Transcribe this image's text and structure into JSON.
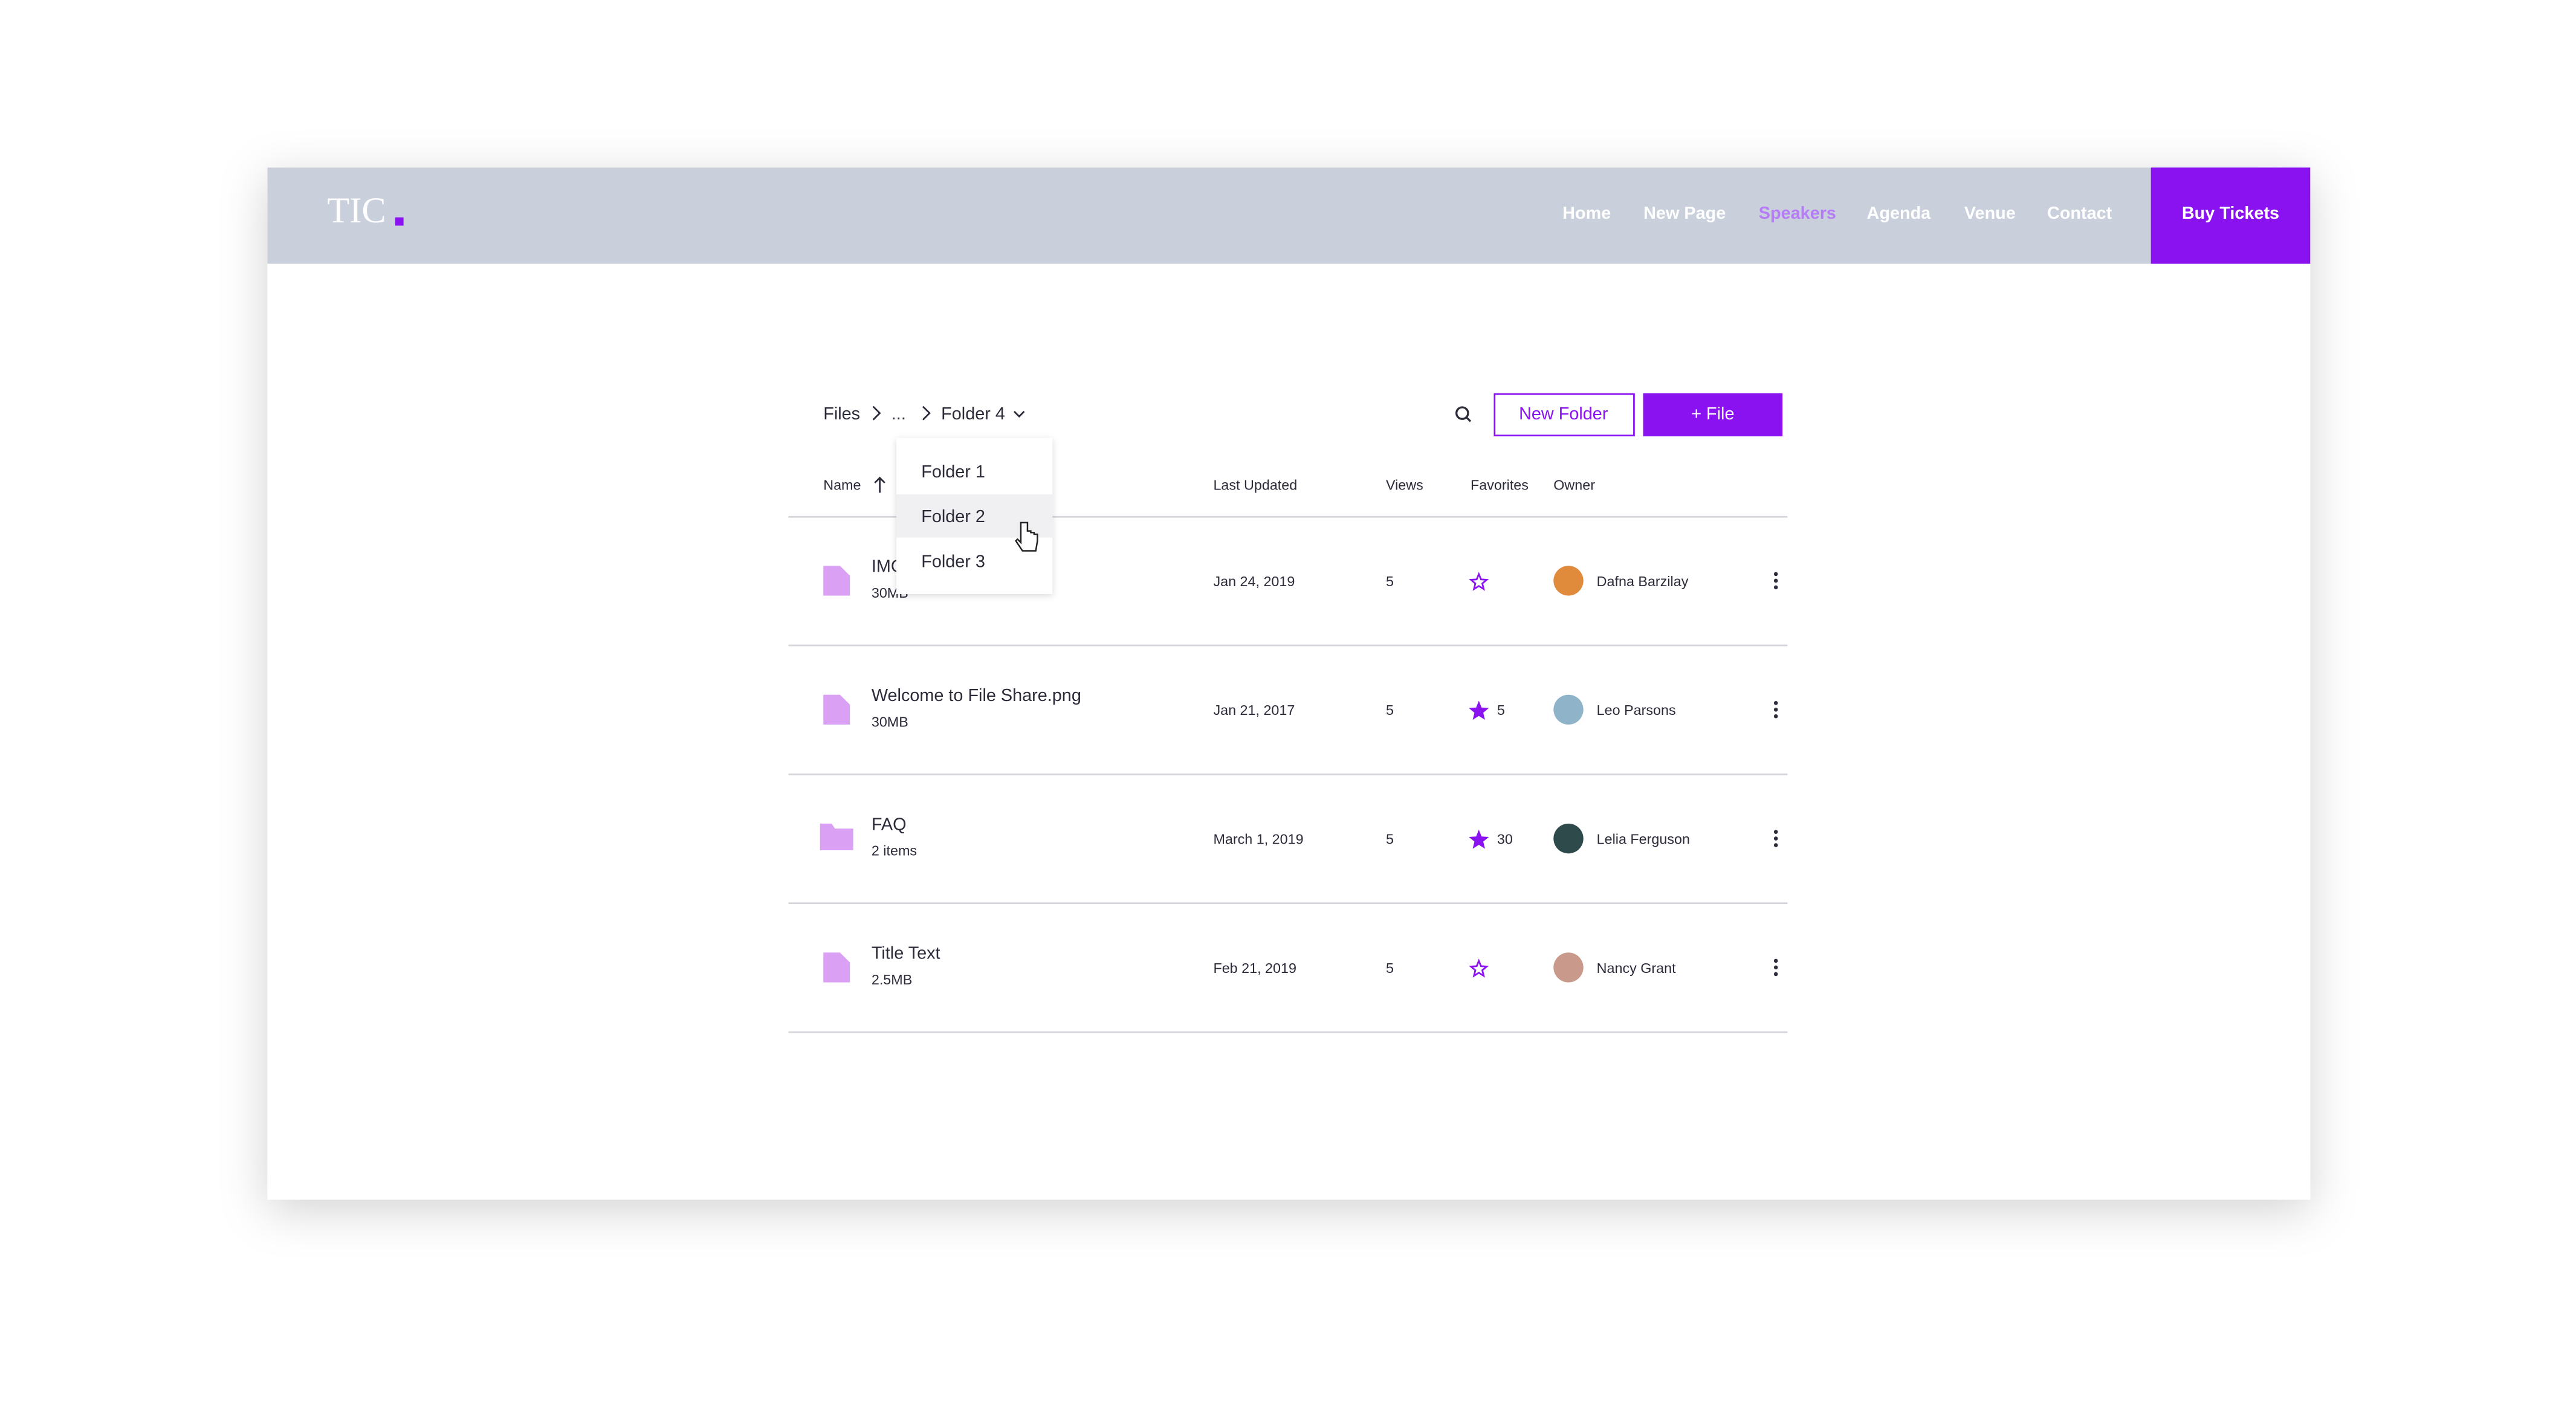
{
  "header": {
    "logo": "TIC",
    "nav": [
      "Home",
      "New Page",
      "Speakers",
      "Agenda",
      "Venue",
      "Contact"
    ],
    "active_nav": 2,
    "cta": "Buy Tickets"
  },
  "toolbar": {
    "breadcrumb": [
      "Files",
      "...",
      "Folder 4"
    ],
    "new_folder": "New Folder",
    "add_file": "+ File"
  },
  "dropdown": {
    "items": [
      "Folder 1",
      "Folder 2",
      "Folder 3"
    ],
    "highlighted": 1
  },
  "table": {
    "columns": [
      "Name",
      "Last Updated",
      "Views",
      "Favorites",
      "Owner"
    ],
    "rows": [
      {
        "kind": "file",
        "name": "IMG",
        "meta": "30MB",
        "updated": "Jan 24, 2019",
        "views": "5",
        "favorite": false,
        "owner": "Dafna Barzilay",
        "avatar": "#e08a3c"
      },
      {
        "kind": "file",
        "name": "Welcome to File Share.png",
        "meta": "30MB",
        "updated": "Jan 21, 2017",
        "views": "5",
        "favorite": true,
        "favorites": "5",
        "owner": "Leo Parsons",
        "avatar": "#8fb3c9"
      },
      {
        "kind": "folder",
        "name": "FAQ",
        "meta": "2 items",
        "updated": "March 1, 2019",
        "views": "5",
        "favorite": true,
        "favorites": "30",
        "owner": "Lelia Ferguson",
        "avatar": "#2f4a4a"
      },
      {
        "kind": "file",
        "name": "Title Text",
        "meta": "2.5MB",
        "updated": "Feb 21, 2019",
        "views": "5",
        "favorite": false,
        "owner": "Nancy Grant",
        "avatar": "#c99a8c"
      }
    ]
  }
}
